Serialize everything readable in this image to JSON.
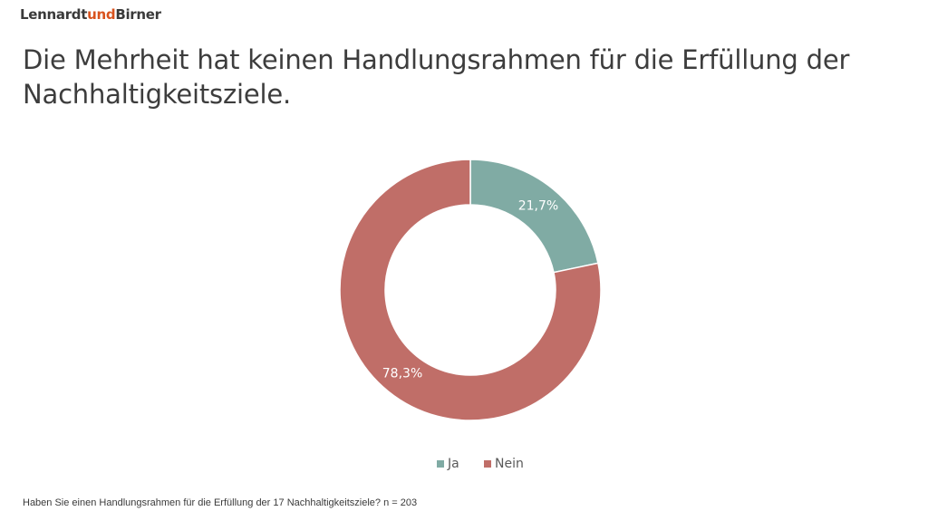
{
  "logo": {
    "part1": "Lennardt",
    "part2": "und",
    "part3": "Birner",
    "accent_color": "#d9531e"
  },
  "title": "Die Mehrheit hat keinen Handlungsrahmen für die Erfüllung der Nachhaltigkeitsziele.",
  "footnote": "Haben Sie einen Handlungsrahmen für die Erfüllung der 17 Nachhaltigkeitsziele? n = 203",
  "chart_data": {
    "type": "pie",
    "donut": true,
    "title": "",
    "legend_position": "bottom",
    "series": [
      {
        "name": "Ja",
        "value": 21.7,
        "label": "21,7%",
        "color": "#80aba4"
      },
      {
        "name": "Nein",
        "value": 78.3,
        "label": "78,3%",
        "color": "#c06e68"
      }
    ]
  }
}
